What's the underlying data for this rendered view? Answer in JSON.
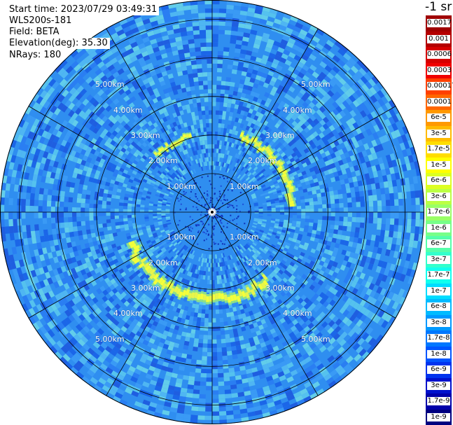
{
  "info": {
    "start_time": "Start time: 2023/07/29 03:49:31",
    "instrument": "WLS200s-181",
    "field": "Field: BETA",
    "elevation": "Elevation(deg): 35.30",
    "nrays": "NRays: 180"
  },
  "colorbar": {
    "unit_label": "-1 sr",
    "levels": [
      {
        "label": "0.0017",
        "color": "#a00000"
      },
      {
        "label": "0.001",
        "color": "#b40000"
      },
      {
        "label": "0.0006",
        "color": "#d60000"
      },
      {
        "label": "0.0003",
        "color": "#f00000"
      },
      {
        "label": "0.00017",
        "color": "#ff4000"
      },
      {
        "label": "0.0001",
        "color": "#ff6600"
      },
      {
        "label": "6e-5",
        "color": "#ff9900"
      },
      {
        "label": "3e-5",
        "color": "#ffbb00"
      },
      {
        "label": "1.7e-5",
        "color": "#ffdd00"
      },
      {
        "label": "1e-5",
        "color": "#ffff00"
      },
      {
        "label": "6e-6",
        "color": "#ddff22"
      },
      {
        "label": "3e-6",
        "color": "#bbff44"
      },
      {
        "label": "1.7e-6",
        "color": "#99ff66"
      },
      {
        "label": "1e-6",
        "color": "#77ff88"
      },
      {
        "label": "6e-7",
        "color": "#55ffaa"
      },
      {
        "label": "3e-7",
        "color": "#33ffcc"
      },
      {
        "label": "1.7e-7",
        "color": "#11ffee"
      },
      {
        "label": "1e-7",
        "color": "#00ddff"
      },
      {
        "label": "6e-8",
        "color": "#00bbff"
      },
      {
        "label": "3e-8",
        "color": "#0099ff"
      },
      {
        "label": "1.7e-8",
        "color": "#0077ff"
      },
      {
        "label": "1e-8",
        "color": "#0055ff"
      },
      {
        "label": "6e-9",
        "color": "#0033ee"
      },
      {
        "label": "3e-9",
        "color": "#0011cc"
      },
      {
        "label": "1.7e-9",
        "color": "#0000aa"
      },
      {
        "label": "1e-9",
        "color": "#000080"
      }
    ]
  },
  "chart_data": {
    "type": "heatmap",
    "projection": "polar",
    "field": "BETA",
    "rings_km": [
      1,
      2,
      3,
      4,
      5
    ],
    "ring_labels": [
      "1.00km",
      "2.00km",
      "3.00km",
      "4.00km",
      "5.00km"
    ],
    "max_range_km": 5.5,
    "spokes_deg": [
      0,
      30,
      60,
      90,
      120,
      150,
      180,
      210,
      240,
      270,
      300,
      330
    ],
    "background_color": "#2f8ef0",
    "features": [
      {
        "name": "enhanced backscatter arc",
        "range_km": [
          1.9,
          2.2
        ],
        "azimuth_deg": [
          315,
          345
        ]
      },
      {
        "name": "enhanced backscatter arc",
        "range_km": [
          1.9,
          2.3
        ],
        "azimuth_deg": [
          20,
          85
        ]
      },
      {
        "name": "enhanced backscatter arc",
        "range_km": [
          2.0,
          2.5
        ],
        "azimuth_deg": [
          140,
          250
        ]
      }
    ]
  }
}
